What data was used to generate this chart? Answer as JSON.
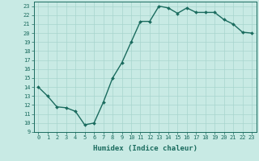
{
  "x": [
    0,
    1,
    2,
    3,
    4,
    5,
    6,
    7,
    8,
    9,
    10,
    11,
    12,
    13,
    14,
    15,
    16,
    17,
    18,
    19,
    20,
    21,
    22,
    23
  ],
  "y": [
    14.0,
    13.0,
    11.8,
    11.7,
    11.3,
    9.8,
    10.0,
    12.3,
    15.0,
    16.7,
    19.0,
    21.3,
    21.3,
    23.0,
    22.8,
    22.2,
    22.8,
    22.3,
    22.3,
    22.3,
    21.5,
    21.0,
    20.1,
    20.0
  ],
  "xlim": [
    -0.5,
    23.5
  ],
  "ylim": [
    9,
    23.5
  ],
  "yticks": [
    9,
    10,
    11,
    12,
    13,
    14,
    15,
    16,
    17,
    18,
    19,
    20,
    21,
    22,
    23
  ],
  "xticks": [
    0,
    1,
    2,
    3,
    4,
    5,
    6,
    7,
    8,
    9,
    10,
    11,
    12,
    13,
    14,
    15,
    16,
    17,
    18,
    19,
    20,
    21,
    22,
    23
  ],
  "xlabel": "Humidex (Indice chaleur)",
  "line_color": "#1a6b5e",
  "marker_color": "#1a6b5e",
  "bg_color": "#c8eae4",
  "grid_color": "#a8d5ce",
  "xlabel_fontsize": 6.5,
  "tick_fontsize": 5.0,
  "line_width": 1.0,
  "marker_size": 2.0
}
